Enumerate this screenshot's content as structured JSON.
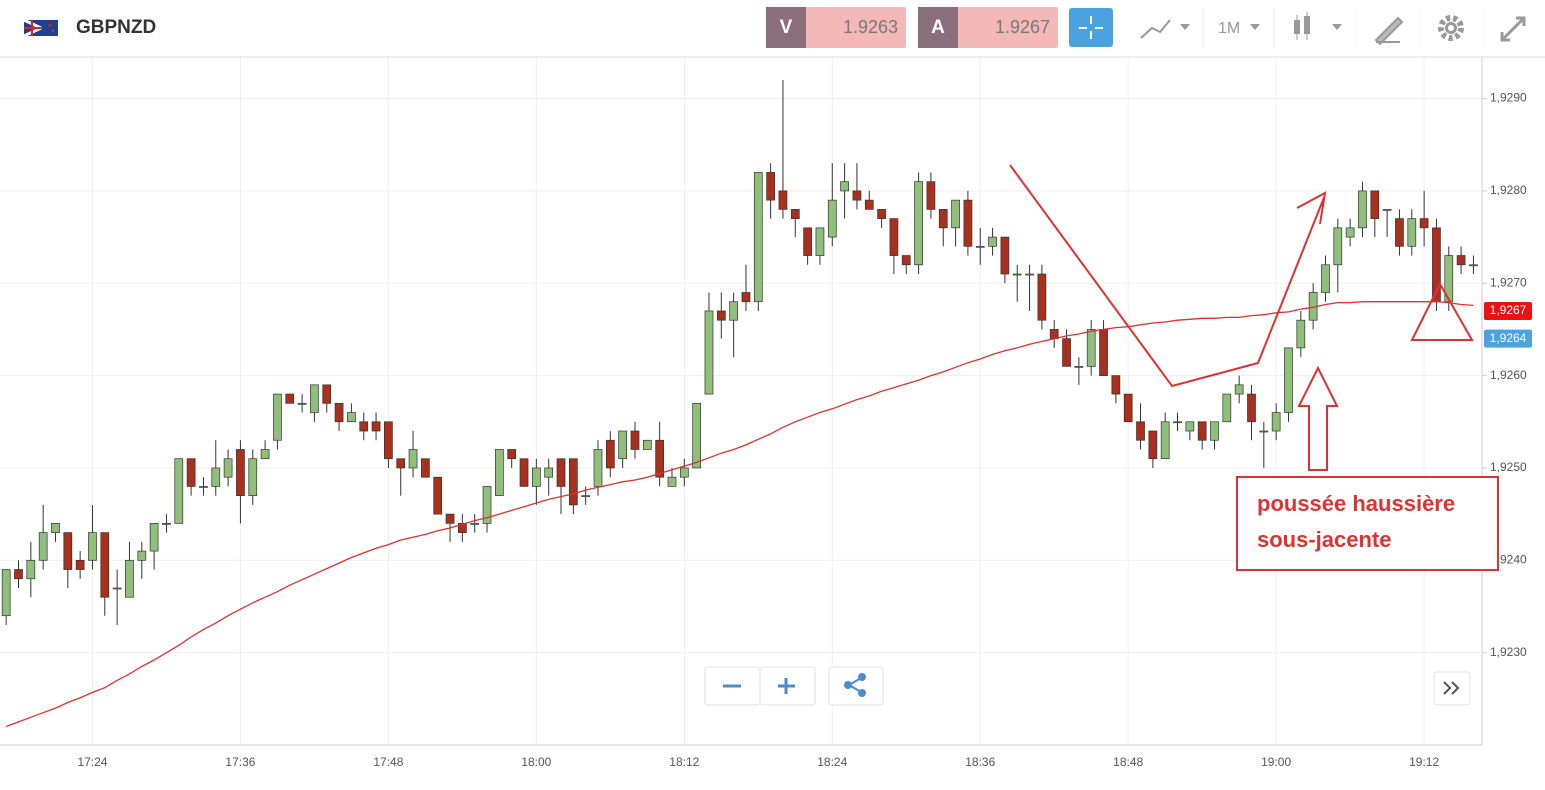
{
  "header": {
    "symbol": "GBPNZD",
    "bid_label": "V",
    "bid": "1.9263",
    "ask_label": "A",
    "ask": "1.9267",
    "timeframe": "1M"
  },
  "chart_data": {
    "type": "candlestick",
    "categories": [
      null,
      null,
      null,
      null,
      null,
      null,
      null,
      "17:24",
      null,
      null,
      null,
      null,
      null,
      null,
      null,
      null,
      null,
      null,
      null,
      "17:36",
      null,
      null,
      null,
      null,
      null,
      null,
      null,
      null,
      null,
      null,
      null,
      "17:48",
      null,
      null,
      null,
      null,
      null,
      null,
      null,
      null,
      null,
      null,
      null,
      "18:00",
      null,
      null,
      null,
      null,
      null,
      null,
      null,
      null,
      null,
      null,
      null,
      "18:12",
      null,
      null,
      null,
      null,
      null,
      null,
      null,
      null,
      null,
      null,
      null,
      "18:24",
      null,
      null,
      null,
      null,
      null,
      null,
      null,
      null,
      null,
      null,
      null,
      "18:36",
      null,
      null,
      null,
      null,
      null,
      null,
      null,
      null,
      null,
      null,
      null,
      "18:48",
      null,
      null,
      null,
      null,
      null,
      null,
      null,
      null,
      null,
      null,
      null,
      "19:00",
      null,
      null,
      null,
      null,
      null,
      null,
      null,
      null,
      null,
      null,
      null,
      "19:12",
      null,
      null,
      null,
      null
    ],
    "open": [
      1.9234,
      1.9239,
      1.9238,
      1.924,
      1.9243,
      1.9243,
      1.924,
      1.924,
      1.9243,
      1.9237,
      1.9236,
      1.924,
      1.9241,
      1.9244,
      1.9244,
      1.9251,
      1.9248,
      1.9248,
      1.9249,
      1.9252,
      1.9247,
      1.9251,
      1.9253,
      1.9258,
      1.9257,
      1.9256,
      1.9259,
      1.9257,
      1.9255,
      1.9255,
      1.9255,
      1.9255,
      1.9251,
      1.925,
      1.9251,
      1.9249,
      1.9245,
      1.9244,
      1.9244,
      1.9244,
      1.9247,
      1.9252,
      1.9251,
      1.9248,
      1.9249,
      1.9251,
      1.9251,
      1.9247,
      1.9248,
      1.9253,
      1.9251,
      1.9254,
      1.9252,
      1.9253,
      1.9248,
      1.9249,
      1.925,
      1.9258,
      1.9267,
      1.9266,
      1.9269,
      1.9268,
      1.9282,
      1.928,
      1.9278,
      1.9276,
      1.9273,
      1.9275,
      1.928,
      1.928,
      1.9279,
      1.9278,
      1.9277,
      1.9273,
      1.9272,
      1.9281,
      1.9278,
      1.9276,
      1.9279,
      1.9274,
      1.9274,
      1.9275,
      1.9271,
      1.9271,
      1.9271,
      1.9265,
      1.9264,
      1.9261,
      1.9261,
      1.9265,
      1.926,
      1.9258,
      1.9255,
      1.9254,
      1.9251,
      1.9255,
      1.9254,
      1.9255,
      1.9253,
      1.9255,
      1.9258,
      1.9258,
      1.9254,
      1.9254,
      1.9256,
      1.9263,
      1.9266,
      1.9269,
      1.9272,
      1.9275,
      1.9276,
      1.928,
      1.9278,
      1.9277,
      1.9274,
      1.9277,
      1.9276,
      1.9268,
      1.9273,
      1.9272
    ],
    "high": [
      1.9239,
      1.924,
      1.9242,
      1.9246,
      1.9244,
      1.9243,
      1.9241,
      1.9246,
      1.9243,
      1.9239,
      1.9242,
      1.9242,
      1.9244,
      1.9245,
      1.9251,
      1.9251,
      1.9249,
      1.9253,
      1.9252,
      1.9253,
      1.9252,
      1.9253,
      1.9258,
      1.9258,
      1.9258,
      1.9259,
      1.9259,
      1.9257,
      1.9257,
      1.9256,
      1.9256,
      1.9255,
      1.9251,
      1.9254,
      1.9251,
      1.9249,
      1.9245,
      1.9245,
      1.9245,
      1.9248,
      1.9252,
      1.9252,
      1.9251,
      1.9251,
      1.9251,
      1.9251,
      1.9251,
      1.9248,
      1.9253,
      1.9254,
      1.9254,
      1.9255,
      1.9253,
      1.9255,
      1.925,
      1.9251,
      1.9257,
      1.9269,
      1.9269,
      1.9269,
      1.9272,
      1.9282,
      1.9283,
      1.9292,
      1.9278,
      1.9276,
      1.9276,
      1.9283,
      1.9283,
      1.9283,
      1.928,
      1.9278,
      1.9277,
      1.9273,
      1.9282,
      1.9282,
      1.9278,
      1.9279,
      1.928,
      1.9276,
      1.9276,
      1.9275,
      1.9272,
      1.9272,
      1.9272,
      1.9266,
      1.9265,
      1.9262,
      1.9266,
      1.9266,
      1.926,
      1.9258,
      1.9257,
      1.9254,
      1.9256,
      1.9256,
      1.9255,
      1.9255,
      1.9255,
      1.9258,
      1.926,
      1.9259,
      1.9255,
      1.9257,
      1.9263,
      1.9267,
      1.927,
      1.9273,
      1.9277,
      1.9277,
      1.9281,
      1.928,
      1.9278,
      1.9278,
      1.9278,
      1.928,
      1.9277,
      1.9274,
      1.9274,
      1.9273
    ],
    "low": [
      1.9233,
      1.9237,
      1.9236,
      1.9239,
      1.9242,
      1.9237,
      1.9238,
      1.9239,
      1.9234,
      1.9233,
      1.9236,
      1.9238,
      1.9239,
      1.9243,
      1.9244,
      1.9247,
      1.9247,
      1.9247,
      1.9248,
      1.9244,
      1.9246,
      1.9251,
      1.9252,
      1.9257,
      1.9256,
      1.9255,
      1.9256,
      1.9254,
      1.9255,
      1.9253,
      1.9253,
      1.925,
      1.9247,
      1.9249,
      1.9249,
      1.9245,
      1.9242,
      1.9242,
      1.9243,
      1.9243,
      1.9247,
      1.925,
      1.9248,
      1.9246,
      1.9247,
      1.9245,
      1.9245,
      1.9246,
      1.9247,
      1.9249,
      1.925,
      1.9251,
      1.9252,
      1.9248,
      1.9248,
      1.9248,
      1.925,
      1.9258,
      1.9264,
      1.9262,
      1.9267,
      1.9267,
      1.9277,
      1.9277,
      1.9275,
      1.9272,
      1.9272,
      1.9274,
      1.9277,
      1.9278,
      1.9278,
      1.9276,
      1.9271,
      1.9271,
      1.9271,
      1.9277,
      1.9274,
      1.9274,
      1.9273,
      1.9272,
      1.9273,
      1.927,
      1.9268,
      1.9267,
      1.9265,
      1.9263,
      1.9261,
      1.9259,
      1.926,
      1.926,
      1.9257,
      1.9255,
      1.9252,
      1.925,
      1.9251,
      1.9254,
      1.9253,
      1.9252,
      1.9252,
      1.9255,
      1.9257,
      1.9253,
      1.925,
      1.9253,
      1.9255,
      1.9262,
      1.9265,
      1.9268,
      1.9269,
      1.9274,
      1.9275,
      1.9275,
      1.9275,
      1.9273,
      1.9273,
      1.9274,
      1.9267,
      1.9267,
      1.9271,
      1.9271
    ],
    "close": [
      1.9239,
      1.9238,
      1.924,
      1.9243,
      1.9244,
      1.9239,
      1.9239,
      1.9243,
      1.9236,
      1.9237,
      1.924,
      1.9241,
      1.9244,
      1.9244,
      1.9251,
      1.9248,
      1.9248,
      1.925,
      1.9251,
      1.9247,
      1.9251,
      1.9252,
      1.9258,
      1.9257,
      1.9257,
      1.9259,
      1.9257,
      1.9255,
      1.9256,
      1.9254,
      1.9254,
      1.9251,
      1.925,
      1.9252,
      1.9249,
      1.9245,
      1.9244,
      1.9243,
      1.9244,
      1.9248,
      1.9252,
      1.9251,
      1.9248,
      1.925,
      1.925,
      1.9248,
      1.9246,
      1.9247,
      1.9252,
      1.925,
      1.9254,
      1.9252,
      1.9253,
      1.9249,
      1.9249,
      1.925,
      1.9257,
      1.9267,
      1.9266,
      1.9268,
      1.9268,
      1.9282,
      1.9279,
      1.9278,
      1.9277,
      1.9273,
      1.9276,
      1.9279,
      1.9281,
      1.9279,
      1.9278,
      1.9277,
      1.9273,
      1.9272,
      1.9281,
      1.9278,
      1.9276,
      1.9279,
      1.9274,
      1.9274,
      1.9275,
      1.9271,
      1.9271,
      1.9271,
      1.9266,
      1.9264,
      1.9261,
      1.9261,
      1.9265,
      1.926,
      1.9258,
      1.9255,
      1.9253,
      1.9251,
      1.9255,
      1.9255,
      1.9255,
      1.9253,
      1.9255,
      1.9258,
      1.9259,
      1.9255,
      1.9254,
      1.9256,
      1.9263,
      1.9266,
      1.9269,
      1.9272,
      1.9276,
      1.9276,
      1.928,
      1.9277,
      1.9278,
      1.9274,
      1.9277,
      1.9276,
      1.9268,
      1.9273,
      1.9272,
      1.9272
    ],
    "up_color": "#8fbf7a",
    "down_color": "#a8301c",
    "moving_average": {
      "color": "#e03030",
      "values": [
        1.9222,
        1.92225,
        1.9223,
        1.92235,
        1.9224,
        1.92246,
        1.92251,
        1.92257,
        1.92262,
        1.9227,
        1.92277,
        1.92285,
        1.92292,
        1.923,
        1.92308,
        1.92317,
        1.92325,
        1.92332,
        1.9234,
        1.92347,
        1.92354,
        1.9236,
        1.92366,
        1.92373,
        1.92379,
        1.92385,
        1.92391,
        1.92397,
        1.92403,
        1.92408,
        1.92413,
        1.92417,
        1.92422,
        1.92425,
        1.92428,
        1.92432,
        1.92435,
        1.92439,
        1.92443,
        1.92446,
        1.9245,
        1.92454,
        1.92458,
        1.92462,
        1.92466,
        1.92469,
        1.92472,
        1.92476,
        1.92479,
        1.92482,
        1.92485,
        1.92487,
        1.9249,
        1.92494,
        1.92498,
        1.92502,
        1.92506,
        1.92511,
        1.92516,
        1.9252,
        1.92525,
        1.92531,
        1.92537,
        1.92544,
        1.9255,
        1.92555,
        1.9256,
        1.92564,
        1.92569,
        1.92574,
        1.92578,
        1.92583,
        1.92587,
        1.92591,
        1.92595,
        1.926,
        1.92604,
        1.92609,
        1.92614,
        1.92618,
        1.92623,
        1.92627,
        1.9263,
        1.92634,
        1.92637,
        1.9264,
        1.92643,
        1.92645,
        1.92648,
        1.9265,
        1.92652,
        1.92653,
        1.92655,
        1.92657,
        1.92658,
        1.9266,
        1.92661,
        1.92662,
        1.92662,
        1.92663,
        1.92663,
        1.92665,
        1.92666,
        1.92668,
        1.92669,
        1.92672,
        1.92674,
        1.92677,
        1.92679,
        1.92679,
        1.9268,
        1.9268,
        1.9268,
        1.9268,
        1.9268,
        1.9268,
        1.9268,
        1.92679,
        1.92677,
        1.92676
      ]
    },
    "ylim": [
      1.922,
      1.92945
    ],
    "yticks": [
      {
        "value": 1.923,
        "label": "1,9230"
      },
      {
        "value": 1.924,
        "label": "1,9240"
      },
      {
        "value": 1.925,
        "label": "1,9250"
      },
      {
        "value": 1.926,
        "label": "1,9260"
      },
      {
        "value": 1.927,
        "label": "1,9270"
      },
      {
        "value": 1.928,
        "label": "1,9280"
      },
      {
        "value": 1.929,
        "label": "1,9290"
      }
    ],
    "grid": true,
    "price_tags": [
      {
        "value": 1.9267,
        "label": "1,9267",
        "color": "#ee1111"
      },
      {
        "value": 1.9264,
        "label": "1,9264",
        "color": "#4aa3df"
      }
    ],
    "annotation": [
      "poussée haussière",
      "sous-jacente"
    ]
  }
}
